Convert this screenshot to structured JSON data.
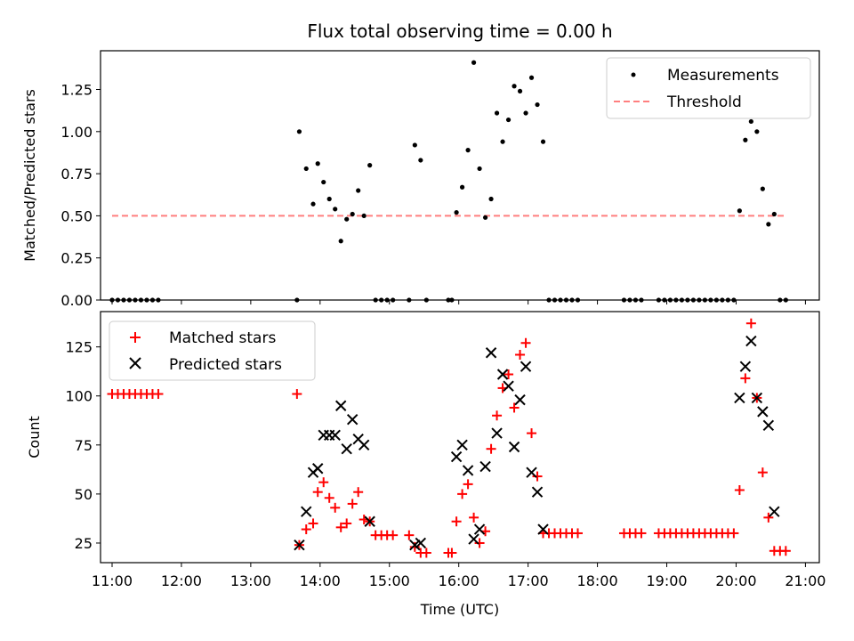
{
  "chart_data": [
    {
      "type": "scatter",
      "title": "Flux total observing time = 0.00 h",
      "xlabel": "",
      "ylabel": "Matched/Predicted stars",
      "xlim": [
        "10:50",
        "21:12"
      ],
      "ylim": [
        0,
        1.48
      ],
      "yticks": [
        "0.00",
        "0.25",
        "0.50",
        "0.75",
        "1.00",
        "1.25"
      ],
      "grid": false,
      "legend_position": "top-right",
      "series": [
        {
          "name": "Measurements",
          "color": "#000000",
          "marker": "dot",
          "points": [
            [
              "11:00",
              0
            ],
            [
              "11:05",
              0
            ],
            [
              "11:10",
              0
            ],
            [
              "11:15",
              0
            ],
            [
              "11:20",
              0
            ],
            [
              "11:25",
              0
            ],
            [
              "11:30",
              0
            ],
            [
              "11:35",
              0
            ],
            [
              "11:40",
              0
            ],
            [
              "13:40",
              0
            ],
            [
              "13:42",
              1.0
            ],
            [
              "13:48",
              0.78
            ],
            [
              "13:54",
              0.57
            ],
            [
              "13:58",
              0.81
            ],
            [
              "14:03",
              0.7
            ],
            [
              "14:08",
              0.6
            ],
            [
              "14:13",
              0.54
            ],
            [
              "14:18",
              0.35
            ],
            [
              "14:23",
              0.48
            ],
            [
              "14:28",
              0.51
            ],
            [
              "14:33",
              0.65
            ],
            [
              "14:38",
              0.5
            ],
            [
              "14:43",
              0.8
            ],
            [
              "14:48",
              0
            ],
            [
              "14:53",
              0
            ],
            [
              "14:58",
              0
            ],
            [
              "15:03",
              0
            ],
            [
              "15:17",
              0
            ],
            [
              "15:22",
              0.92
            ],
            [
              "15:27",
              0.83
            ],
            [
              "15:32",
              0
            ],
            [
              "15:51",
              0
            ],
            [
              "15:54",
              0
            ],
            [
              "15:58",
              0.52
            ],
            [
              "16:03",
              0.67
            ],
            [
              "16:08",
              0.89
            ],
            [
              "16:13",
              1.41
            ],
            [
              "16:18",
              0.78
            ],
            [
              "16:23",
              0.49
            ],
            [
              "16:28",
              0.6
            ],
            [
              "16:33",
              1.11
            ],
            [
              "16:38",
              0.94
            ],
            [
              "16:43",
              1.07
            ],
            [
              "16:48",
              1.27
            ],
            [
              "16:53",
              1.24
            ],
            [
              "16:58",
              1.11
            ],
            [
              "17:03",
              1.32
            ],
            [
              "17:08",
              1.16
            ],
            [
              "17:13",
              0.94
            ],
            [
              "17:18",
              0
            ],
            [
              "17:23",
              0
            ],
            [
              "17:28",
              0
            ],
            [
              "17:33",
              0
            ],
            [
              "17:38",
              0
            ],
            [
              "17:43",
              0
            ],
            [
              "18:23",
              0
            ],
            [
              "18:28",
              0
            ],
            [
              "18:33",
              0
            ],
            [
              "18:38",
              0
            ],
            [
              "18:53",
              0
            ],
            [
              "18:58",
              0
            ],
            [
              "19:03",
              0
            ],
            [
              "19:08",
              0
            ],
            [
              "19:13",
              0
            ],
            [
              "19:18",
              0
            ],
            [
              "19:23",
              0
            ],
            [
              "19:28",
              0
            ],
            [
              "19:33",
              0
            ],
            [
              "19:38",
              0
            ],
            [
              "19:43",
              0
            ],
            [
              "19:48",
              0
            ],
            [
              "19:53",
              0
            ],
            [
              "19:58",
              0
            ],
            [
              "20:03",
              0.53
            ],
            [
              "20:08",
              0.95
            ],
            [
              "20:13",
              1.06
            ],
            [
              "20:18",
              1.0
            ],
            [
              "20:23",
              0.66
            ],
            [
              "20:28",
              0.45
            ],
            [
              "20:33",
              0.51
            ],
            [
              "20:38",
              0
            ],
            [
              "20:43",
              0
            ]
          ]
        },
        {
          "name": "Threshold",
          "color": "#ff7f7f",
          "style": "dashed",
          "points": [
            [
              "11:00",
              0.5
            ],
            [
              "20:43",
              0.5
            ]
          ]
        }
      ]
    },
    {
      "type": "scatter",
      "xlabel": "Time (UTC)",
      "ylabel": "Count",
      "xlim": [
        "10:50",
        "21:12"
      ],
      "ylim": [
        15,
        143
      ],
      "xticks": [
        "11:00",
        "12:00",
        "13:00",
        "14:00",
        "15:00",
        "16:00",
        "17:00",
        "18:00",
        "19:00",
        "20:00",
        "21:00"
      ],
      "yticks": [
        "25",
        "50",
        "75",
        "100",
        "125"
      ],
      "grid": false,
      "legend_position": "top-left",
      "series": [
        {
          "name": "Matched stars",
          "color": "#ff0000",
          "marker": "plus",
          "points": [
            [
              "11:00",
              101
            ],
            [
              "11:05",
              101
            ],
            [
              "11:10",
              101
            ],
            [
              "11:15",
              101
            ],
            [
              "11:20",
              101
            ],
            [
              "11:25",
              101
            ],
            [
              "11:30",
              101
            ],
            [
              "11:35",
              101
            ],
            [
              "11:40",
              101
            ],
            [
              "13:40",
              101
            ],
            [
              "13:42",
              24
            ],
            [
              "13:48",
              32
            ],
            [
              "13:54",
              35
            ],
            [
              "13:58",
              51
            ],
            [
              "14:03",
              56
            ],
            [
              "14:08",
              48
            ],
            [
              "14:13",
              43
            ],
            [
              "14:18",
              33
            ],
            [
              "14:23",
              35
            ],
            [
              "14:28",
              45
            ],
            [
              "14:33",
              51
            ],
            [
              "14:38",
              37
            ],
            [
              "14:43",
              36
            ],
            [
              "14:48",
              29
            ],
            [
              "14:53",
              29
            ],
            [
              "14:58",
              29
            ],
            [
              "15:03",
              29
            ],
            [
              "15:17",
              29
            ],
            [
              "15:22",
              23
            ],
            [
              "15:27",
              20
            ],
            [
              "15:32",
              20
            ],
            [
              "15:51",
              20
            ],
            [
              "15:54",
              20
            ],
            [
              "15:58",
              36
            ],
            [
              "16:03",
              50
            ],
            [
              "16:08",
              55
            ],
            [
              "16:13",
              38
            ],
            [
              "16:18",
              25
            ],
            [
              "16:23",
              31
            ],
            [
              "16:28",
              73
            ],
            [
              "16:33",
              90
            ],
            [
              "16:38",
              104
            ],
            [
              "16:43",
              111
            ],
            [
              "16:48",
              94
            ],
            [
              "16:53",
              121
            ],
            [
              "16:58",
              127
            ],
            [
              "17:03",
              81
            ],
            [
              "17:08",
              59
            ],
            [
              "17:13",
              30
            ],
            [
              "17:18",
              30
            ],
            [
              "17:23",
              30
            ],
            [
              "17:28",
              30
            ],
            [
              "17:33",
              30
            ],
            [
              "17:38",
              30
            ],
            [
              "17:43",
              30
            ],
            [
              "18:23",
              30
            ],
            [
              "18:28",
              30
            ],
            [
              "18:33",
              30
            ],
            [
              "18:38",
              30
            ],
            [
              "18:53",
              30
            ],
            [
              "18:58",
              30
            ],
            [
              "19:03",
              30
            ],
            [
              "19:08",
              30
            ],
            [
              "19:13",
              30
            ],
            [
              "19:18",
              30
            ],
            [
              "19:23",
              30
            ],
            [
              "19:28",
              30
            ],
            [
              "19:33",
              30
            ],
            [
              "19:38",
              30
            ],
            [
              "19:43",
              30
            ],
            [
              "19:48",
              30
            ],
            [
              "19:53",
              30
            ],
            [
              "19:58",
              30
            ],
            [
              "20:03",
              52
            ],
            [
              "20:08",
              109
            ],
            [
              "20:13",
              137
            ],
            [
              "20:18",
              99
            ],
            [
              "20:23",
              61
            ],
            [
              "20:28",
              38
            ],
            [
              "20:33",
              21
            ],
            [
              "20:38",
              21
            ],
            [
              "20:43",
              21
            ]
          ]
        },
        {
          "name": "Predicted stars",
          "color": "#000000",
          "marker": "x",
          "points": [
            [
              "13:42",
              24
            ],
            [
              "13:48",
              41
            ],
            [
              "13:54",
              61
            ],
            [
              "13:58",
              63
            ],
            [
              "14:03",
              80
            ],
            [
              "14:08",
              80
            ],
            [
              "14:13",
              80
            ],
            [
              "14:18",
              95
            ],
            [
              "14:23",
              73
            ],
            [
              "14:28",
              88
            ],
            [
              "14:33",
              78
            ],
            [
              "14:38",
              75
            ],
            [
              "14:43",
              36
            ],
            [
              "15:22",
              24
            ],
            [
              "15:27",
              25
            ],
            [
              "15:58",
              69
            ],
            [
              "16:03",
              75
            ],
            [
              "16:08",
              62
            ],
            [
              "16:13",
              27
            ],
            [
              "16:18",
              32
            ],
            [
              "16:23",
              64
            ],
            [
              "16:28",
              122
            ],
            [
              "16:33",
              81
            ],
            [
              "16:38",
              111
            ],
            [
              "16:43",
              105
            ],
            [
              "16:48",
              74
            ],
            [
              "16:53",
              98
            ],
            [
              "16:58",
              115
            ],
            [
              "17:03",
              61
            ],
            [
              "17:08",
              51
            ],
            [
              "17:13",
              32
            ],
            [
              "20:03",
              99
            ],
            [
              "20:08",
              115
            ],
            [
              "20:13",
              128
            ],
            [
              "20:18",
              99
            ],
            [
              "20:23",
              92
            ],
            [
              "20:28",
              85
            ],
            [
              "20:33",
              41
            ]
          ]
        }
      ]
    }
  ]
}
